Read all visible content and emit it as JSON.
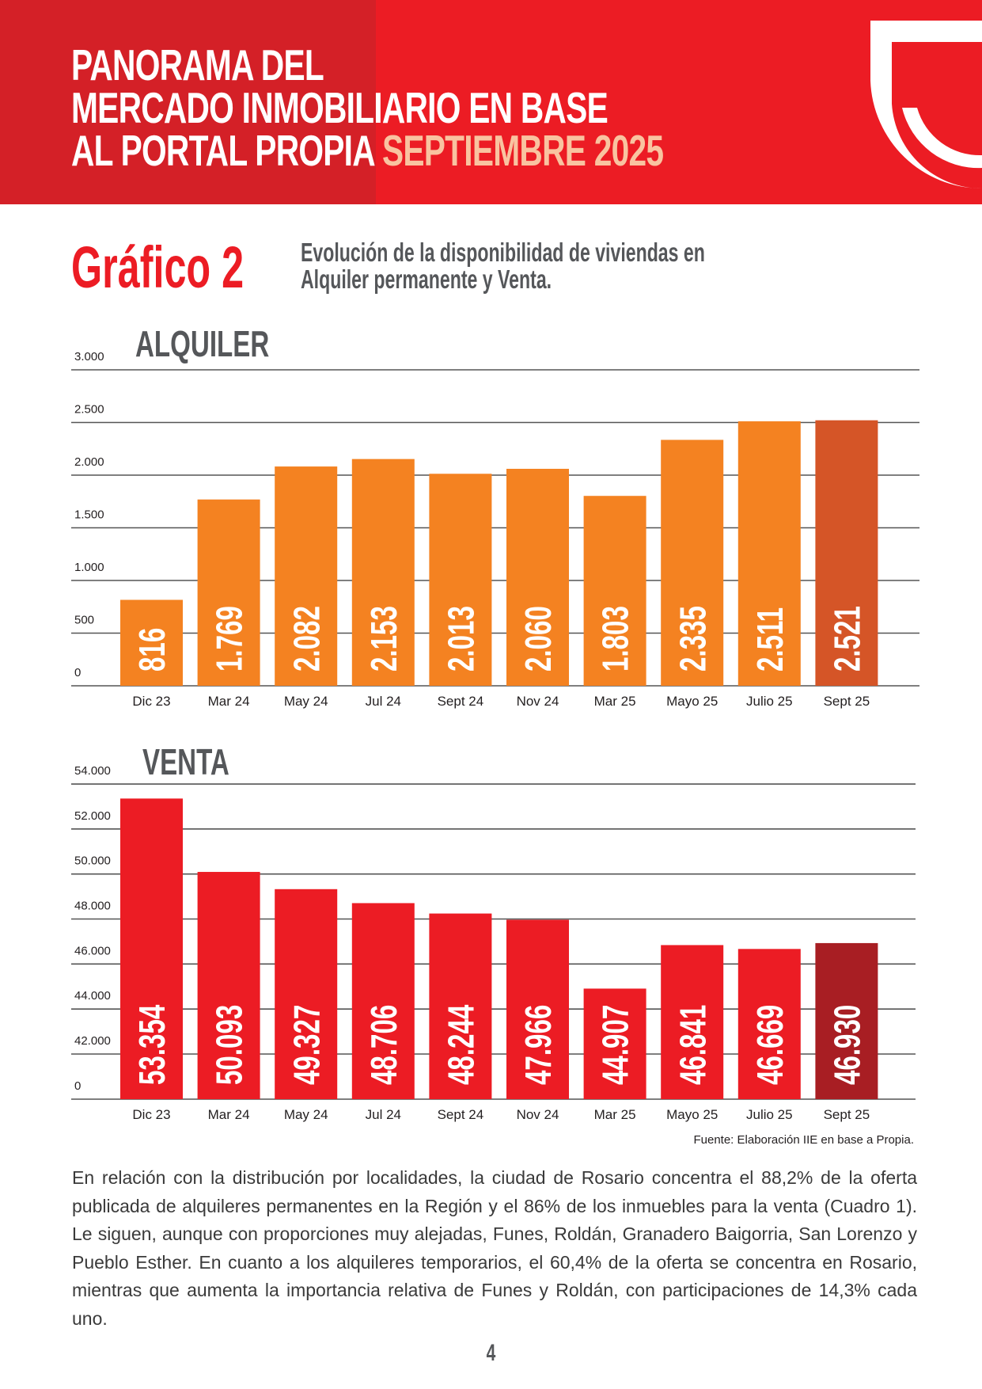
{
  "header": {
    "title_lines": [
      "PANORAMA DEL",
      "MERCADO INMOBILIARIO EN BASE",
      "AL PORTAL PROPIA"
    ],
    "title_highlight": "SEPTIEMBRE 2025",
    "logo": "propia-logo",
    "colors": {
      "dark_red": "#D42027",
      "red": "#EC1C24",
      "highlight": "#F9C3A0"
    }
  },
  "figure": {
    "number": "Gráfico 2",
    "description_lines": [
      "Evolución de la disponibilidad de viviendas en",
      "Alquiler permanente y Venta."
    ]
  },
  "chart_data": [
    {
      "type": "bar",
      "title": "ALQUILER",
      "categories": [
        "Dic 23",
        "Mar 24",
        "May 24",
        "Jul 24",
        "Sept 24",
        "Nov 24",
        "Mar 25",
        "Mayo 25",
        "Julio 25",
        "Sept 25"
      ],
      "values": [
        816,
        1769,
        2082,
        2153,
        2013,
        2060,
        1803,
        2335,
        2511,
        2521
      ],
      "labels": [
        "816",
        "1.769",
        "2.082",
        "2.153",
        "2.013",
        "2.060",
        "1.803",
        "2.335",
        "2.511",
        "2.521"
      ],
      "yticks": [
        0,
        500,
        1000,
        1500,
        2000,
        2500,
        3000
      ],
      "ytick_labels": [
        "0",
        "500",
        "1.000",
        "1.500",
        "2.000",
        "2.500",
        "3.000"
      ],
      "ylim": [
        0,
        3000
      ],
      "grid": true,
      "colors": {
        "bar": "#F48221",
        "highlight": "#D55527"
      },
      "highlight_index": 9
    },
    {
      "type": "bar",
      "title": "VENTA",
      "categories": [
        "Dic 23",
        "Mar 24",
        "May 24",
        "Jul 24",
        "Sept 24",
        "Nov 24",
        "Mar 25",
        "Mayo 25",
        "Julio 25",
        "Sept 25"
      ],
      "values": [
        53354,
        50093,
        49327,
        48706,
        48244,
        47966,
        44907,
        46841,
        46669,
        46930
      ],
      "labels": [
        "53.354",
        "50.093",
        "49.327",
        "48.706",
        "48.244",
        "47.966",
        "44.907",
        "46.841",
        "46.669",
        "46.930"
      ],
      "yticks": [
        0,
        42000,
        44000,
        46000,
        48000,
        50000,
        52000,
        54000
      ],
      "ytick_labels": [
        "0",
        "42.000",
        "44.000",
        "46.000",
        "48.000",
        "50.000",
        "52.000",
        "54.000"
      ],
      "ylim": [
        0,
        54000
      ],
      "axis_break": [
        0,
        42000
      ],
      "grid": true,
      "colors": {
        "bar": "#EC1C24",
        "highlight": "#A81E23"
      },
      "highlight_index": 9
    }
  ],
  "source": "Fuente: Elaboración IIE en base a Propia.",
  "body_text": "En relación con la distribución por localidades, la ciudad de Rosario concentra el 88,2% de la oferta publicada de alquileres permanentes en la Región y el 86% de los inmuebles para la venta (Cuadro 1). Le siguen, aunque con proporciones muy alejadas, Funes, Roldán, Granadero Baigorria, San Lorenzo y Pueblo Esther. En cuanto a los alquileres temporarios, el 60,4% de la oferta se concentra en Rosario, mientras que aumenta la importancia relativa de Funes y Roldán, con participaciones de 14,3% cada uno.",
  "page_number": "4"
}
